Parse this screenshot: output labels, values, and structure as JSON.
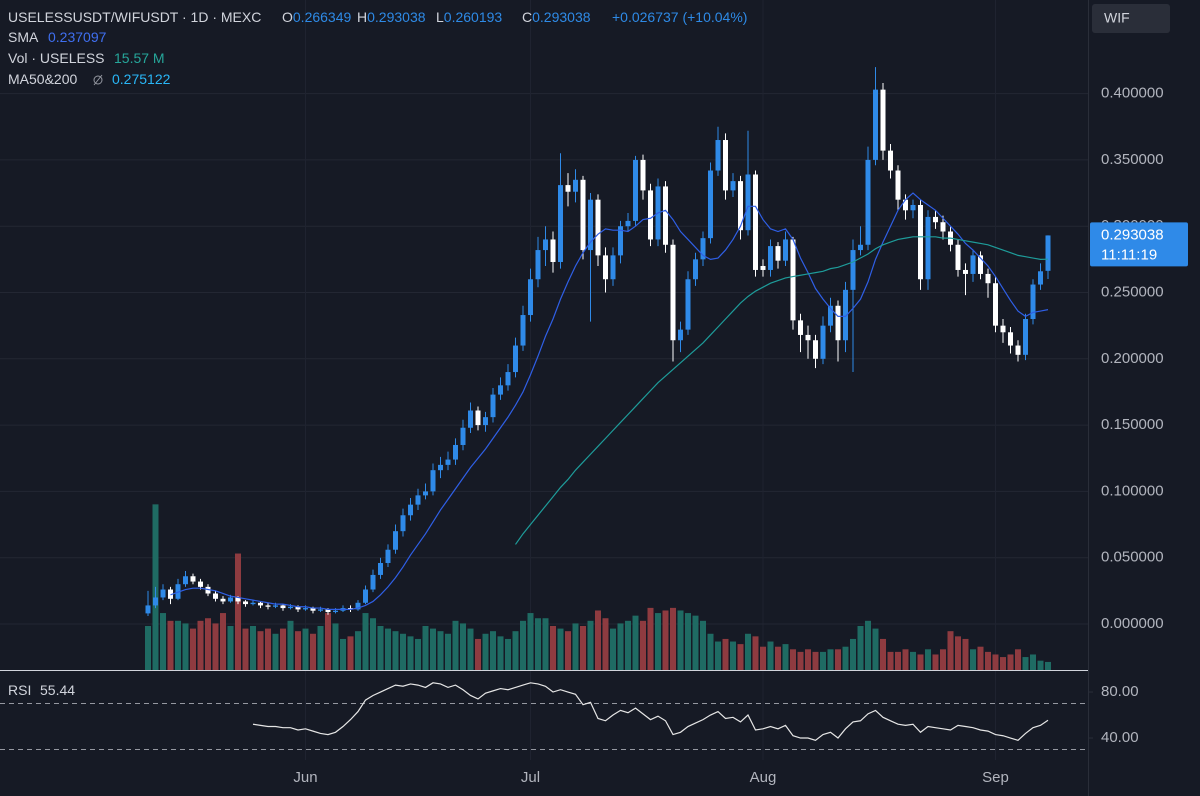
{
  "chart_data": {
    "type": "candlestick",
    "title": "USELESSUSDT/WIFUSDT · 1D · MEXC",
    "symbol": "WIF",
    "ohlc_letters": [
      "O",
      "H",
      "L",
      "C"
    ],
    "change": "+0.026737 (+10.04%)",
    "countdown": "11:11:19",
    "up_color": "#2f8ae8",
    "down_color": "#ffffff",
    "grid": true,
    "ylim": [
      -0.0347,
      0.4706
    ],
    "yticks": [
      {
        "value": 0,
        "label": "0.000000"
      },
      {
        "value": 0.05,
        "label": "0.050000"
      },
      {
        "value": 0.1,
        "label": "0.100000"
      },
      {
        "value": 0.15,
        "label": "0.150000"
      },
      {
        "value": 0.2,
        "label": "0.200000"
      },
      {
        "value": 0.25,
        "label": "0.250000"
      },
      {
        "value": 0.3,
        "label": "0.300000"
      },
      {
        "value": 0.35,
        "label": "0.350000"
      },
      {
        "value": 0.4,
        "label": "0.400000"
      }
    ],
    "categories": [
      null,
      null,
      null,
      null,
      null,
      null,
      null,
      null,
      null,
      null,
      null,
      null,
      null,
      null,
      null,
      null,
      null,
      null,
      null,
      null,
      null,
      "Jun",
      null,
      null,
      null,
      null,
      null,
      null,
      null,
      null,
      null,
      null,
      null,
      null,
      null,
      null,
      null,
      null,
      null,
      null,
      null,
      null,
      null,
      null,
      null,
      null,
      null,
      null,
      null,
      null,
      null,
      "Jul",
      null,
      null,
      null,
      null,
      null,
      null,
      null,
      null,
      null,
      null,
      null,
      null,
      null,
      null,
      null,
      null,
      null,
      null,
      null,
      null,
      null,
      null,
      null,
      null,
      null,
      null,
      null,
      null,
      null,
      null,
      "Aug",
      null,
      null,
      null,
      null,
      null,
      null,
      null,
      null,
      null,
      null,
      null,
      null,
      null,
      null,
      null,
      null,
      null,
      null,
      null,
      null,
      null,
      null,
      null,
      null,
      null,
      null,
      null,
      null,
      null,
      null,
      "Sep",
      null,
      null,
      null,
      null,
      null,
      null,
      null
    ],
    "candles": [
      [
        0.008,
        0.025,
        0.006,
        0.014
      ],
      [
        0.014,
        0.028,
        0.012,
        0.02
      ],
      [
        0.02,
        0.03,
        0.018,
        0.026
      ],
      [
        0.026,
        0.028,
        0.015,
        0.019
      ],
      [
        0.019,
        0.034,
        0.018,
        0.03
      ],
      [
        0.03,
        0.04,
        0.028,
        0.036
      ],
      [
        0.036,
        0.038,
        0.03,
        0.032
      ],
      [
        0.032,
        0.034,
        0.026,
        0.028
      ],
      [
        0.028,
        0.03,
        0.021,
        0.023
      ],
      [
        0.023,
        0.025,
        0.017,
        0.019
      ],
      [
        0.019,
        0.021,
        0.015,
        0.017
      ],
      [
        0.017,
        0.022,
        0.016,
        0.02
      ],
      [
        0.02,
        0.021,
        0.015,
        0.017
      ],
      [
        0.017,
        0.018,
        0.013,
        0.015
      ],
      [
        0.015,
        0.018,
        0.014,
        0.016
      ],
      [
        0.016,
        0.017,
        0.012,
        0.014
      ],
      [
        0.014,
        0.016,
        0.011,
        0.013
      ],
      [
        0.013,
        0.016,
        0.012,
        0.014
      ],
      [
        0.014,
        0.015,
        0.01,
        0.012
      ],
      [
        0.012,
        0.015,
        0.011,
        0.013
      ],
      [
        0.013,
        0.014,
        0.009,
        0.011
      ],
      [
        0.011,
        0.014,
        0.01,
        0.012
      ],
      [
        0.012,
        0.013,
        0.008,
        0.01
      ],
      [
        0.01,
        0.013,
        0.009,
        0.011
      ],
      [
        0.011,
        0.012,
        0.007,
        0.009
      ],
      [
        0.009,
        0.012,
        0.008,
        0.01
      ],
      [
        0.01,
        0.014,
        0.009,
        0.012
      ],
      [
        0.012,
        0.014,
        0.009,
        0.011
      ],
      [
        0.011,
        0.018,
        0.01,
        0.016
      ],
      [
        0.016,
        0.029,
        0.015,
        0.026
      ],
      [
        0.026,
        0.041,
        0.024,
        0.037
      ],
      [
        0.037,
        0.05,
        0.034,
        0.046
      ],
      [
        0.046,
        0.06,
        0.043,
        0.056
      ],
      [
        0.056,
        0.075,
        0.053,
        0.07
      ],
      [
        0.07,
        0.087,
        0.066,
        0.082
      ],
      [
        0.082,
        0.095,
        0.078,
        0.09
      ],
      [
        0.09,
        0.102,
        0.086,
        0.097
      ],
      [
        0.097,
        0.106,
        0.094,
        0.1
      ],
      [
        0.1,
        0.121,
        0.097,
        0.116
      ],
      [
        0.116,
        0.126,
        0.11,
        0.12
      ],
      [
        0.12,
        0.13,
        0.116,
        0.124
      ],
      [
        0.124,
        0.14,
        0.12,
        0.135
      ],
      [
        0.135,
        0.154,
        0.131,
        0.148
      ],
      [
        0.148,
        0.167,
        0.144,
        0.161
      ],
      [
        0.161,
        0.164,
        0.146,
        0.15
      ],
      [
        0.15,
        0.16,
        0.145,
        0.156
      ],
      [
        0.156,
        0.178,
        0.152,
        0.173
      ],
      [
        0.173,
        0.186,
        0.169,
        0.18
      ],
      [
        0.18,
        0.196,
        0.176,
        0.19
      ],
      [
        0.19,
        0.216,
        0.186,
        0.21
      ],
      [
        0.21,
        0.24,
        0.206,
        0.233
      ],
      [
        0.233,
        0.268,
        0.228,
        0.26
      ],
      [
        0.26,
        0.292,
        0.254,
        0.282
      ],
      [
        0.282,
        0.3,
        0.27,
        0.29
      ],
      [
        0.29,
        0.296,
        0.265,
        0.273
      ],
      [
        0.273,
        0.355,
        0.268,
        0.331
      ],
      [
        0.331,
        0.34,
        0.315,
        0.326
      ],
      [
        0.326,
        0.343,
        0.318,
        0.335
      ],
      [
        0.335,
        0.338,
        0.275,
        0.282
      ],
      [
        0.282,
        0.325,
        0.228,
        0.32
      ],
      [
        0.32,
        0.324,
        0.27,
        0.278
      ],
      [
        0.278,
        0.284,
        0.25,
        0.26
      ],
      [
        0.26,
        0.284,
        0.255,
        0.278
      ],
      [
        0.278,
        0.304,
        0.272,
        0.3
      ],
      [
        0.3,
        0.31,
        0.296,
        0.304
      ],
      [
        0.304,
        0.353,
        0.3,
        0.35
      ],
      [
        0.35,
        0.354,
        0.32,
        0.327
      ],
      [
        0.327,
        0.332,
        0.285,
        0.29
      ],
      [
        0.29,
        0.336,
        0.285,
        0.33
      ],
      [
        0.33,
        0.334,
        0.28,
        0.286
      ],
      [
        0.286,
        0.29,
        0.198,
        0.214
      ],
      [
        0.214,
        0.228,
        0.205,
        0.222
      ],
      [
        0.222,
        0.266,
        0.218,
        0.26
      ],
      [
        0.26,
        0.28,
        0.255,
        0.275
      ],
      [
        0.275,
        0.296,
        0.27,
        0.291
      ],
      [
        0.291,
        0.348,
        0.287,
        0.342
      ],
      [
        0.342,
        0.375,
        0.338,
        0.365
      ],
      [
        0.365,
        0.37,
        0.32,
        0.327
      ],
      [
        0.327,
        0.34,
        0.322,
        0.334
      ],
      [
        0.334,
        0.338,
        0.29,
        0.297
      ],
      [
        0.297,
        0.372,
        0.293,
        0.339
      ],
      [
        0.339,
        0.342,
        0.262,
        0.267
      ],
      [
        0.27,
        0.275,
        0.262,
        0.267
      ],
      [
        0.267,
        0.29,
        0.262,
        0.285
      ],
      [
        0.285,
        0.288,
        0.268,
        0.274
      ],
      [
        0.274,
        0.296,
        0.27,
        0.29
      ],
      [
        0.29,
        0.292,
        0.222,
        0.229
      ],
      [
        0.229,
        0.234,
        0.205,
        0.218
      ],
      [
        0.218,
        0.225,
        0.2,
        0.214
      ],
      [
        0.214,
        0.218,
        0.193,
        0.2
      ],
      [
        0.2,
        0.232,
        0.196,
        0.225
      ],
      [
        0.225,
        0.246,
        0.22,
        0.24
      ],
      [
        0.24,
        0.244,
        0.198,
        0.214
      ],
      [
        0.214,
        0.258,
        0.205,
        0.252
      ],
      [
        0.252,
        0.29,
        0.19,
        0.282
      ],
      [
        0.282,
        0.3,
        0.278,
        0.286
      ],
      [
        0.286,
        0.36,
        0.282,
        0.35
      ],
      [
        0.35,
        0.42,
        0.346,
        0.403
      ],
      [
        0.403,
        0.408,
        0.35,
        0.357
      ],
      [
        0.357,
        0.362,
        0.336,
        0.342
      ],
      [
        0.342,
        0.346,
        0.312,
        0.32
      ],
      [
        0.32,
        0.324,
        0.305,
        0.312
      ],
      [
        0.312,
        0.32,
        0.306,
        0.316
      ],
      [
        0.316,
        0.32,
        0.252,
        0.26
      ],
      [
        0.26,
        0.312,
        0.252,
        0.307
      ],
      [
        0.307,
        0.312,
        0.298,
        0.303
      ],
      [
        0.303,
        0.308,
        0.29,
        0.296
      ],
      [
        0.296,
        0.3,
        0.281,
        0.286
      ],
      [
        0.286,
        0.29,
        0.262,
        0.267
      ],
      [
        0.267,
        0.272,
        0.248,
        0.264
      ],
      [
        0.264,
        0.282,
        0.258,
        0.278
      ],
      [
        0.278,
        0.281,
        0.26,
        0.264
      ],
      [
        0.264,
        0.268,
        0.246,
        0.257
      ],
      [
        0.257,
        0.262,
        0.22,
        0.225
      ],
      [
        0.225,
        0.23,
        0.212,
        0.22
      ],
      [
        0.22,
        0.224,
        0.204,
        0.21
      ],
      [
        0.21,
        0.214,
        0.198,
        0.203
      ],
      [
        0.203,
        0.234,
        0.199,
        0.23
      ],
      [
        0.23,
        0.26,
        0.226,
        0.256
      ],
      [
        0.256,
        0.272,
        0.252,
        0.266
      ],
      [
        0.266349,
        0.293038,
        0.260193,
        0.293038
      ]
    ],
    "overlays": [
      {
        "name": "SMA",
        "color": "#2f5fe6",
        "values": [
          null,
          null,
          null,
          0.022,
          0.024,
          0.026,
          0.027,
          0.027,
          0.026,
          0.025,
          0.023,
          0.021,
          0.02,
          0.019,
          0.018,
          0.017,
          0.016,
          0.015,
          0.015,
          0.014,
          0.013,
          0.013,
          0.012,
          0.012,
          0.011,
          0.011,
          0.011,
          0.011,
          0.012,
          0.014,
          0.017,
          0.022,
          0.028,
          0.035,
          0.043,
          0.052,
          0.06,
          0.068,
          0.077,
          0.086,
          0.094,
          0.102,
          0.11,
          0.118,
          0.125,
          0.132,
          0.14,
          0.148,
          0.156,
          0.165,
          0.175,
          0.188,
          0.202,
          0.217,
          0.23,
          0.245,
          0.258,
          0.27,
          0.28,
          0.288,
          0.294,
          0.298,
          0.297,
          0.297,
          0.296,
          0.3,
          0.305,
          0.306,
          0.31,
          0.312,
          0.305,
          0.296,
          0.29,
          0.284,
          0.278,
          0.275,
          0.276,
          0.282,
          0.29,
          0.3,
          0.315,
          0.315,
          0.305,
          0.298,
          0.296,
          0.298,
          0.29,
          0.276,
          0.265,
          0.253,
          0.245,
          0.238,
          0.232,
          0.232,
          0.238,
          0.245,
          0.258,
          0.275,
          0.288,
          0.3,
          0.312,
          0.32,
          0.325,
          0.32,
          0.316,
          0.312,
          0.306,
          0.3,
          0.294,
          0.287,
          0.282,
          0.276,
          0.27,
          0.262,
          0.253,
          0.244,
          0.236,
          0.232,
          0.235,
          0.236,
          0.237097
        ]
      },
      {
        "name": "MA50&200",
        "color": "#1e9c9a",
        "label_color": "#29b6f6",
        "values": [
          null,
          null,
          null,
          null,
          null,
          null,
          null,
          null,
          null,
          null,
          null,
          null,
          null,
          null,
          null,
          null,
          null,
          null,
          null,
          null,
          null,
          null,
          null,
          null,
          null,
          null,
          null,
          null,
          null,
          null,
          null,
          null,
          null,
          null,
          null,
          null,
          null,
          null,
          null,
          null,
          null,
          null,
          null,
          null,
          null,
          null,
          null,
          null,
          null,
          0.06,
          0.068,
          0.075,
          0.082,
          0.089,
          0.096,
          0.103,
          0.109,
          0.116,
          0.122,
          0.128,
          0.134,
          0.14,
          0.146,
          0.152,
          0.158,
          0.164,
          0.17,
          0.176,
          0.182,
          0.187,
          0.192,
          0.197,
          0.202,
          0.207,
          0.212,
          0.218,
          0.224,
          0.23,
          0.236,
          0.242,
          0.247,
          0.251,
          0.254,
          0.257,
          0.259,
          0.261,
          0.262,
          0.263,
          0.264,
          0.265,
          0.266,
          0.268,
          0.269,
          0.271,
          0.273,
          0.276,
          0.279,
          0.283,
          0.286,
          0.288,
          0.29,
          0.291,
          0.292,
          0.292,
          0.292,
          0.292,
          0.291,
          0.291,
          0.29,
          0.289,
          0.288,
          0.287,
          0.286,
          0.284,
          0.282,
          0.28,
          0.278,
          0.277,
          0.276,
          0.275,
          0.275122
        ]
      }
    ],
    "volume": {
      "name": "Vol · USELESS",
      "last_label": "15.57 M",
      "ylim": [
        0,
        340
      ],
      "up_color": "#1f6b63",
      "down_color": "#8e3b40",
      "values": [
        85,
        320,
        110,
        95,
        95,
        90,
        80,
        95,
        100,
        90,
        110,
        85,
        225,
        80,
        85,
        75,
        80,
        70,
        80,
        95,
        75,
        80,
        70,
        85,
        110,
        90,
        60,
        65,
        75,
        110,
        100,
        85,
        80,
        75,
        70,
        65,
        60,
        85,
        80,
        75,
        70,
        95,
        90,
        80,
        60,
        70,
        75,
        65,
        60,
        75,
        95,
        110,
        100,
        100,
        85,
        80,
        75,
        90,
        85,
        95,
        115,
        100,
        80,
        90,
        95,
        105,
        95,
        120,
        110,
        115,
        120,
        115,
        110,
        105,
        95,
        70,
        55,
        60,
        55,
        50,
        70,
        65,
        45,
        55,
        45,
        50,
        40,
        35,
        40,
        35,
        35,
        40,
        40,
        45,
        60,
        85,
        95,
        80,
        60,
        35,
        35,
        40,
        35,
        30,
        40,
        30,
        40,
        75,
        65,
        60,
        40,
        45,
        35,
        30,
        25,
        30,
        40,
        25,
        30,
        18,
        15.57
      ]
    },
    "rsi": {
      "name": "RSI",
      "color": "#e6e6e6",
      "ylim": [
        20.9,
        97.4
      ],
      "yticks": [
        {
          "value": 80,
          "label": "80.00"
        },
        {
          "value": 40,
          "label": "40.00"
        }
      ],
      "bands": [
        70,
        30
      ],
      "values": [
        null,
        null,
        null,
        null,
        null,
        null,
        null,
        null,
        null,
        null,
        null,
        null,
        null,
        null,
        52,
        51,
        50,
        50,
        49,
        49,
        47,
        48,
        46,
        44,
        43,
        45,
        50,
        56,
        63,
        73,
        77,
        80,
        83,
        86,
        85,
        87,
        86,
        84,
        88,
        87,
        84,
        86,
        82,
        77,
        74,
        79,
        81,
        83,
        82,
        84,
        86,
        88,
        87,
        85,
        80,
        82,
        80,
        78,
        69,
        71,
        57,
        55,
        60,
        64,
        62,
        66,
        61,
        56,
        59,
        55,
        43,
        45,
        50,
        53,
        56,
        60,
        63,
        57,
        58,
        54,
        60,
        47,
        48,
        50,
        48,
        51,
        42,
        40,
        40,
        38,
        43,
        45,
        40,
        48,
        54,
        55,
        61,
        64,
        58,
        55,
        52,
        51,
        52,
        45,
        50,
        49,
        48,
        47,
        51,
        50,
        49,
        47,
        46,
        43,
        42,
        40,
        38,
        44,
        49,
        51,
        55.44
      ]
    }
  }
}
